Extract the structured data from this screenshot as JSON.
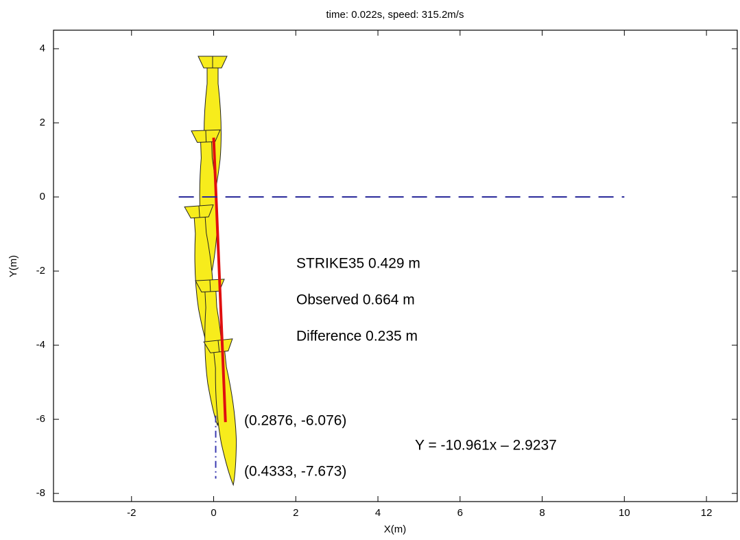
{
  "chart_data": {
    "type": "line",
    "title": "time:  0.022s,  speed:  315.2m/s",
    "xlabel": "X(m)",
    "ylabel": "Y(m)",
    "xlim": [
      -3.9,
      12.75
    ],
    "ylim": [
      -8.22,
      4.5
    ],
    "xticks": [
      -2,
      0,
      2,
      4,
      6,
      8,
      10,
      12
    ],
    "yticks": [
      -8,
      -6,
      -4,
      -2,
      0,
      2,
      4
    ],
    "grid": false,
    "series": [
      {
        "color": "#e01010",
        "linestyle": "-",
        "x": [
          0,
          0.2876
        ],
        "values": [
          1.6,
          -6.076
        ]
      },
      {
        "color": "#2a2a9a",
        "linestyle": "--",
        "x": [
          -0.85,
          10
        ],
        "values": [
          0,
          0
        ]
      },
      {
        "color": "#3a3ab0",
        "linestyle": "-.",
        "x": [
          0.05,
          0.05
        ],
        "values": [
          -5.9,
          -7.6
        ]
      }
    ],
    "annotations": [
      "STRIKE35 0.429 m",
      "Observed 0.664 m",
      "Difference 0.235 m",
      "(0.2876, -6.076)",
      "Y = -10.961x – 2.9237",
      "(0.4333, -7.673)"
    ]
  }
}
